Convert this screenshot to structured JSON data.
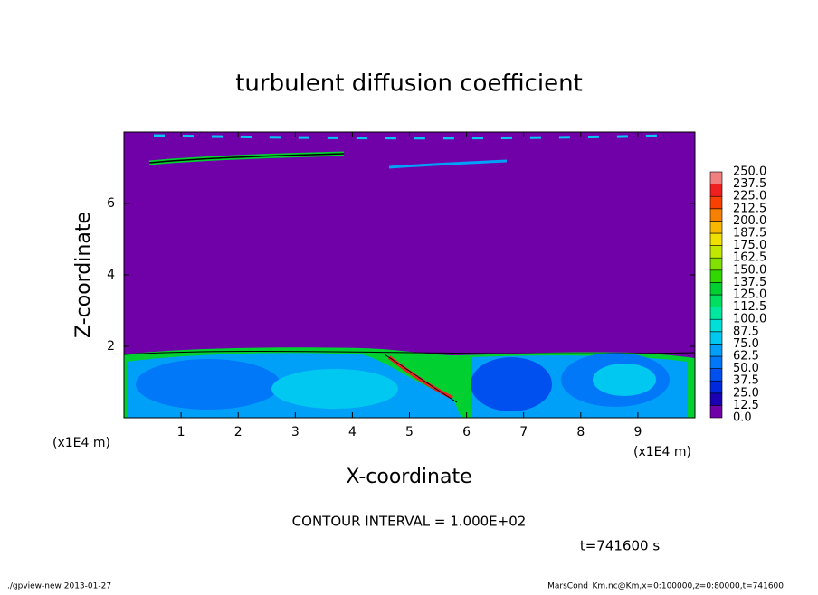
{
  "chart_data": {
    "type": "contour",
    "title": "turbulent diffusion coefficient",
    "xlabel": "X-coordinate",
    "ylabel": "Z-coordinate",
    "x_unit": "(x1E4 m)",
    "xlim": [
      0,
      10
    ],
    "ylim": [
      0,
      8
    ],
    "xticks": [
      1,
      2,
      3,
      4,
      5,
      6,
      7,
      8,
      9
    ],
    "yticks": [
      2,
      4,
      6
    ],
    "levels": [
      {
        "value": 0,
        "label": "0.0"
      },
      {
        "value": 12.5,
        "label": "12.5"
      },
      {
        "value": 25,
        "label": "25.0"
      },
      {
        "value": 37.5,
        "label": "37.5"
      },
      {
        "value": 50,
        "label": "50.0"
      },
      {
        "value": 62.5,
        "label": "62.5"
      },
      {
        "value": 75,
        "label": "75.0"
      },
      {
        "value": 87.5,
        "label": "87.5"
      },
      {
        "value": 100,
        "label": "100.0"
      },
      {
        "value": 112.5,
        "label": "112.5"
      },
      {
        "value": 125,
        "label": "125.0"
      },
      {
        "value": 137.5,
        "label": "137.5"
      },
      {
        "value": 150,
        "label": "150.0"
      },
      {
        "value": 162.5,
        "label": "162.5"
      },
      {
        "value": 175,
        "label": "175.0"
      },
      {
        "value": 187.5,
        "label": "187.5"
      },
      {
        "value": 200,
        "label": "200.0"
      },
      {
        "value": 212.5,
        "label": "212.5"
      },
      {
        "value": 225,
        "label": "225.0"
      },
      {
        "value": 237.5,
        "label": "237.5"
      },
      {
        "value": 250,
        "label": "250.0"
      }
    ],
    "colors": [
      "#7000a8",
      "#1c00b4",
      "#0028dc",
      "#0050f0",
      "#0078f8",
      "#00a0f8",
      "#00c8f0",
      "#00e0d8",
      "#00e8a0",
      "#00e060",
      "#00d030",
      "#30d800",
      "#80e000",
      "#c0e800",
      "#f0e000",
      "#f8b800",
      "#f88000",
      "#f84000",
      "#f02020",
      "#f08080"
    ],
    "annotations": [
      "CONTOUR INTERVAL = 1.000E+02",
      "t=741600 s"
    ],
    "footer_left": "./gpview-new  2013-01-27",
    "footer_right": "MarsCond_Km.nc@Km,x=0:100000,z=0:80000,t=741600"
  }
}
